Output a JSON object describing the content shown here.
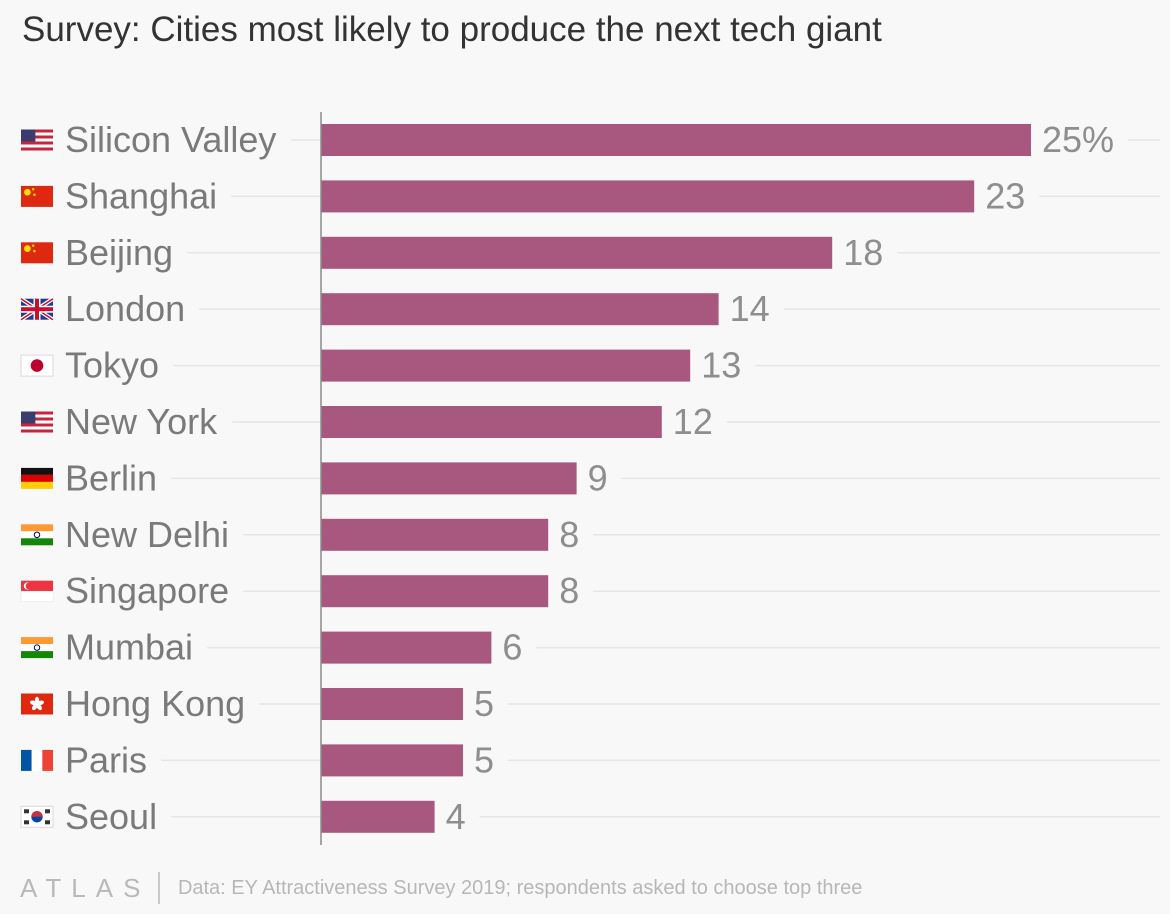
{
  "chart_data": {
    "type": "bar",
    "orientation": "horizontal",
    "title": "Survey: Cities most likely to produce the next tech giant",
    "categories": [
      "Silicon Valley",
      "Shanghai",
      "Beijing",
      "London",
      "Tokyo",
      "New York",
      "Berlin",
      "New Delhi",
      "Singapore",
      "Mumbai",
      "Hong Kong",
      "Paris",
      "Seoul"
    ],
    "flags": [
      "us",
      "cn",
      "cn",
      "gb",
      "jp",
      "us",
      "de",
      "in",
      "sg",
      "in",
      "hk",
      "fr",
      "kr"
    ],
    "values": [
      25,
      23,
      18,
      14,
      13,
      12,
      9,
      8,
      8,
      6,
      5,
      5,
      4
    ],
    "value_labels": [
      "25%",
      "23",
      "18",
      "14",
      "13",
      "12",
      "9",
      "8",
      "8",
      "6",
      "5",
      "5",
      "4"
    ],
    "unit": "%",
    "xlim": [
      0,
      25
    ],
    "bar_color": "#a8577f",
    "grid": true,
    "legend": "none"
  },
  "footer": {
    "brand": "ATLAS",
    "source": "Data: EY Attractiveness Survey 2019; respondents asked to choose top three"
  }
}
